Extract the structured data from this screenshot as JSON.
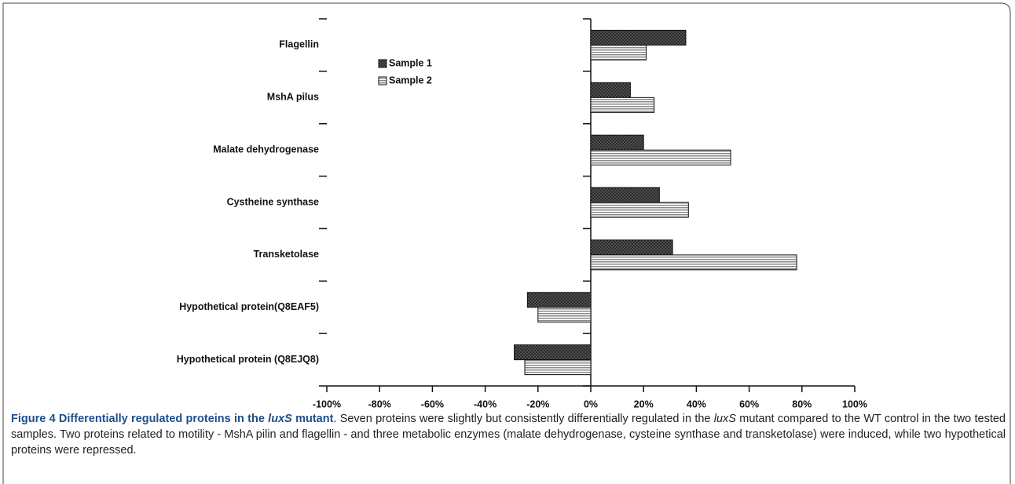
{
  "chart_data": {
    "type": "hbar",
    "categories": [
      "Flagellin",
      "MshA pilus",
      "Malate dehydrogenase",
      "Cystheine synthase",
      "Transketolase",
      "Hypothetical protein(Q8EAF5)",
      "Hypothetical protein (Q8EJQ8)"
    ],
    "series": [
      {
        "name": "Sample 1",
        "color": "#2b2b2b",
        "values": [
          36,
          15,
          20,
          26,
          31,
          -24,
          -29
        ]
      },
      {
        "name": "Sample 2",
        "color": "#8a8a8a",
        "values": [
          21,
          24,
          53,
          37,
          78,
          -20,
          -25
        ]
      }
    ],
    "xlim": [
      -100,
      100
    ],
    "xticks": [
      {
        "value": -100,
        "label": "-100%"
      },
      {
        "value": -80,
        "label": "-80%"
      },
      {
        "value": -60,
        "label": "-60%"
      },
      {
        "value": -40,
        "label": "-40%"
      },
      {
        "value": -20,
        "label": "-20%"
      },
      {
        "value": 0,
        "label": "0%"
      },
      {
        "value": 20,
        "label": "20%"
      },
      {
        "value": 40,
        "label": "40%"
      },
      {
        "value": 60,
        "label": "60%"
      },
      {
        "value": 80,
        "label": "80%"
      },
      {
        "value": 100,
        "label": "100%"
      }
    ],
    "legend": "upper-left"
  },
  "caption": {
    "label": "Figure 4",
    "title_start": "Differentially regulated proteins in the",
    "title_italic": "luxS",
    "title_end": "mutant",
    "text_start": ". Seven proteins were slightly but consistently differentially regulated in the",
    "text_italic": "luxS",
    "text_end": "mutant compared to the WT control in the two tested samples. Two proteins related to motility - MshA pilin and flagellin - and three metabolic enzymes (malate dehydrogenase, cysteine synthase and transketolase) were induced, while two hypothetical proteins were repressed."
  }
}
